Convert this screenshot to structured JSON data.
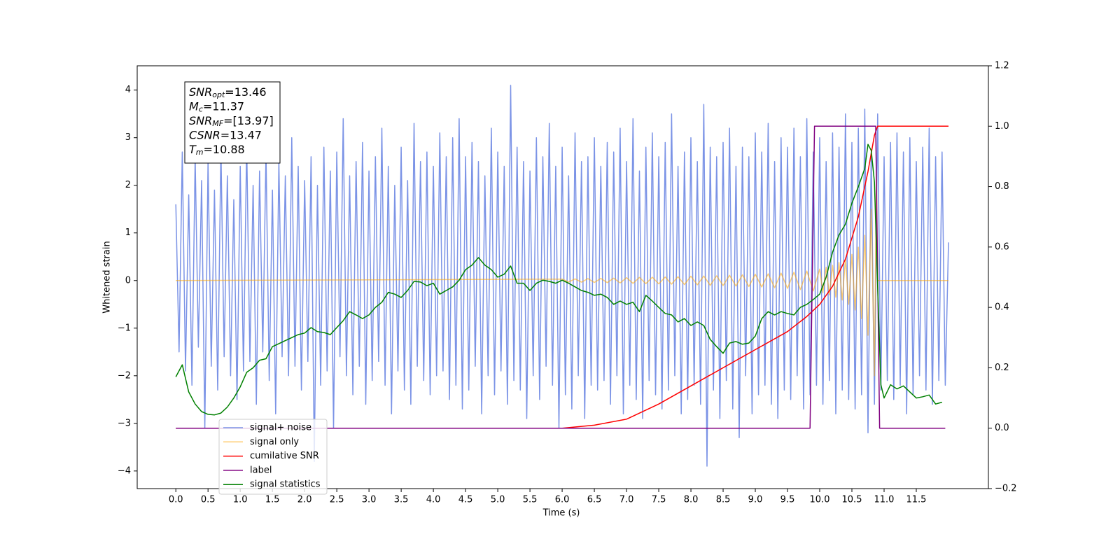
{
  "chart_data": {
    "type": "line",
    "xlabel": "Time (s)",
    "ylabel": "Whitened strain",
    "xlim": [
      -0.6,
      12.62
    ],
    "ylim": [
      -4.37,
      4.51
    ],
    "y2lim": [
      -0.2,
      1.2
    ],
    "xticks": [
      {
        "value": 0,
        "label": "0.0"
      },
      0.5,
      {
        "value": 1,
        "label": "1.0"
      },
      1.5,
      {
        "value": 2,
        "label": "2.0"
      },
      2.5,
      {
        "value": 3,
        "label": "3.0"
      },
      3.5,
      {
        "value": 4,
        "label": "4.0"
      },
      4.5,
      {
        "value": 5,
        "label": "5.0"
      },
      5.5,
      {
        "value": 6,
        "label": "6.0"
      },
      6.5,
      {
        "value": 7,
        "label": "7.0"
      },
      7.5,
      {
        "value": 8,
        "label": "8.0"
      },
      8.5,
      {
        "value": 9,
        "label": "9.0"
      },
      9.5,
      {
        "value": 10,
        "label": "10.0"
      },
      10.5,
      {
        "value": 11,
        "label": "11.0"
      },
      11.5
    ],
    "yticks": [
      {
        "value": -4,
        "label": "−4"
      },
      {
        "value": -3,
        "label": "−3"
      },
      {
        "value": -2,
        "label": "−2"
      },
      {
        "value": -1,
        "label": "−1"
      },
      0,
      1,
      2,
      3,
      4
    ],
    "y2ticks": [
      {
        "value": -0.2,
        "label": "−0.2"
      },
      {
        "value": 0,
        "label": "0.0"
      },
      0.2,
      0.4,
      0.6,
      0.8,
      {
        "value": 1,
        "label": "1.0"
      },
      1.2
    ],
    "legend": "lower left",
    "annotations": [
      {
        "symbol": "SNR",
        "subscript": "opt",
        "text": "=13.46"
      },
      {
        "symbol": "M",
        "subscript": "c",
        "text": "=11.37"
      },
      {
        "symbol": "SNR",
        "subscript": "MF",
        "text": "=[13.97]"
      },
      {
        "symbol": "CSNR",
        "subscript": "",
        "text": "=13.47"
      },
      {
        "symbol": "T",
        "subscript": "m",
        "text": "=10.88"
      }
    ],
    "series": [
      {
        "name": "signal+ noise",
        "color": "#7b93e6",
        "axis": "y",
        "x": [
          0,
          0.05,
          0.1,
          0.15,
          0.2,
          0.25,
          0.3,
          0.35,
          0.4,
          0.45,
          0.5,
          0.55,
          0.6,
          0.65,
          0.7,
          0.75,
          0.8,
          0.85,
          0.9,
          0.95,
          1,
          1.05,
          1.1,
          1.15,
          1.2,
          1.25,
          1.3,
          1.35,
          1.4,
          1.45,
          1.5,
          1.55,
          1.6,
          1.65,
          1.7,
          1.75,
          1.8,
          1.85,
          1.9,
          1.95,
          2,
          2.05,
          2.1,
          2.15,
          2.2,
          2.25,
          2.3,
          2.35,
          2.4,
          2.45,
          2.5,
          2.55,
          2.6,
          2.65,
          2.7,
          2.75,
          2.8,
          2.85,
          2.9,
          2.95,
          3,
          3.05,
          3.1,
          3.15,
          3.2,
          3.25,
          3.3,
          3.35,
          3.4,
          3.45,
          3.5,
          3.55,
          3.6,
          3.65,
          3.7,
          3.75,
          3.8,
          3.85,
          3.9,
          3.95,
          4,
          4.05,
          4.1,
          4.15,
          4.2,
          4.25,
          4.3,
          4.35,
          4.4,
          4.45,
          4.5,
          4.55,
          4.6,
          4.65,
          4.7,
          4.75,
          4.8,
          4.85,
          4.9,
          4.95,
          5,
          5.05,
          5.1,
          5.15,
          5.2,
          5.25,
          5.3,
          5.35,
          5.4,
          5.45,
          5.5,
          5.55,
          5.6,
          5.65,
          5.7,
          5.75,
          5.8,
          5.85,
          5.9,
          5.95,
          6,
          6.05,
          6.1,
          6.15,
          6.2,
          6.25,
          6.3,
          6.35,
          6.4,
          6.45,
          6.5,
          6.55,
          6.6,
          6.65,
          6.7,
          6.75,
          6.8,
          6.85,
          6.9,
          6.95,
          7,
          7.05,
          7.1,
          7.15,
          7.2,
          7.25,
          7.3,
          7.35,
          7.4,
          7.45,
          7.5,
          7.55,
          7.6,
          7.65,
          7.7,
          7.75,
          7.8,
          7.85,
          7.9,
          7.95,
          8,
          8.05,
          8.1,
          8.15,
          8.2,
          8.25,
          8.3,
          8.35,
          8.4,
          8.45,
          8.5,
          8.55,
          8.6,
          8.65,
          8.7,
          8.75,
          8.8,
          8.85,
          8.9,
          8.95,
          9,
          9.05,
          9.1,
          9.15,
          9.2,
          9.25,
          9.3,
          9.35,
          9.4,
          9.45,
          9.5,
          9.55,
          9.6,
          9.65,
          9.7,
          9.75,
          9.8,
          9.85,
          9.9,
          9.95,
          10,
          10.05,
          10.1,
          10.15,
          10.2,
          10.25,
          10.3,
          10.35,
          10.4,
          10.45,
          10.5,
          10.55,
          10.6,
          10.65,
          10.7,
          10.75,
          10.8,
          10.85,
          10.9,
          10.95,
          11,
          11.05,
          11.1,
          11.15,
          11.2,
          11.25,
          11.3,
          11.35,
          11.4,
          11.45,
          11.5,
          11.55,
          11.6,
          11.65,
          11.7,
          11.75,
          11.8,
          11.85,
          11.9,
          11.95,
          12
        ],
        "values": [
          1.6,
          -1.5,
          2.7,
          -1.9,
          1.8,
          -2.2,
          2.6,
          -1.4,
          2.1,
          -3.1,
          2.5,
          -1.8,
          1.9,
          -2.3,
          2.8,
          -1.6,
          2.2,
          -2.0,
          1.7,
          -2.5,
          2.4,
          -1.9,
          2.9,
          -1.7,
          2.0,
          -2.6,
          2.3,
          -1.5,
          2.7,
          -2.1,
          1.9,
          -2.8,
          2.5,
          -1.6,
          2.2,
          -2.0,
          3.0,
          -1.8,
          2.4,
          -2.3,
          2.1,
          -1.7,
          2.6,
          -3.8,
          2.0,
          -2.2,
          2.8,
          -1.9,
          2.3,
          -3.1,
          2.7,
          -1.6,
          3.4,
          -2.0,
          2.2,
          -2.4,
          2.5,
          -1.8,
          2.9,
          -2.6,
          2.3,
          -2.1,
          2.6,
          -1.7,
          3.2,
          -2.2,
          2.4,
          -2.8,
          2.0,
          -1.9,
          2.8,
          -2.3,
          2.1,
          -2.6,
          3.3,
          -1.8,
          2.5,
          -2.1,
          2.7,
          -2.4,
          2.4,
          -2.0,
          3.1,
          -1.9,
          2.6,
          -2.5,
          3.0,
          -2.2,
          3.4,
          -2.7,
          2.6,
          -2.3,
          2.9,
          -1.8,
          2.5,
          -2.8,
          2.2,
          -2.0,
          3.2,
          -2.4,
          2.7,
          -1.9,
          2.4,
          -2.6,
          4.1,
          -2.1,
          2.8,
          -2.3,
          2.5,
          -2.9,
          2.3,
          -2.0,
          3.0,
          -2.5,
          2.6,
          -1.8,
          3.3,
          -2.2,
          2.4,
          -3.1,
          2.8,
          -2.4,
          2.2,
          -2.7,
          3.1,
          -2.0,
          2.5,
          -2.9,
          2.6,
          -2.2,
          3.0,
          -2.3,
          2.4,
          -2.1,
          2.9,
          -2.6,
          2.7,
          -2.0,
          3.2,
          -2.8,
          2.5,
          -2.2,
          3.4,
          -2.5,
          2.3,
          -2.9,
          2.8,
          -2.1,
          3.1,
          -2.4,
          2.6,
          -2.7,
          2.9,
          -2.3,
          3.5,
          -2.0,
          2.4,
          -2.8,
          2.7,
          -2.5,
          3.0,
          -2.2,
          2.5,
          -2.6,
          3.7,
          -3.9,
          2.8,
          -2.3,
          2.6,
          -2.9,
          2.9,
          -2.1,
          3.2,
          -2.7,
          2.4,
          -3.3,
          2.8,
          -2.0,
          2.6,
          -2.8,
          3.1,
          -2.4,
          2.7,
          -2.2,
          3.3,
          -2.6,
          2.5,
          -2.9,
          3.0,
          -2.3,
          2.8,
          -2.5,
          3.2,
          -2.0,
          2.6,
          -2.7,
          3.4,
          -2.4,
          2.7,
          -2.2,
          3.0,
          -2.6,
          2.5,
          -2.1,
          3.1,
          -2.8,
          2.8,
          -2.3,
          3.5,
          -2.5,
          2.9,
          -2.7,
          3.2,
          -2.4,
          3.6,
          -3.2,
          2.7,
          -2.6,
          3.5,
          -2.3,
          2.6,
          -2.1,
          2.9,
          -2.5,
          3.1,
          -2.2,
          2.7,
          -2.8,
          3.0,
          -2.4,
          2.5,
          -2.0,
          2.8,
          -2.3,
          3.2,
          -2.6,
          2.6,
          -2.1,
          2.7,
          -2.2,
          0.8
        ]
      },
      {
        "name": "signal only",
        "color": "#ffa500",
        "axis": "y",
        "x": [
          0,
          6.0,
          6.1,
          6.2,
          6.3,
          6.4,
          6.5,
          6.6,
          6.7,
          6.8,
          6.9,
          7.0,
          7.1,
          7.2,
          7.3,
          7.4,
          7.5,
          7.6,
          7.7,
          7.8,
          7.9,
          8.0,
          8.1,
          8.2,
          8.3,
          8.4,
          8.5,
          8.6,
          8.7,
          8.8,
          8.9,
          9.0,
          9.1,
          9.2,
          9.3,
          9.4,
          9.5,
          9.6,
          9.7,
          9.8,
          9.9,
          10.0,
          10.05,
          10.1,
          10.15,
          10.2,
          10.25,
          10.3,
          10.35,
          10.4,
          10.45,
          10.5,
          10.55,
          10.6,
          10.65,
          10.7,
          10.75,
          10.8,
          10.85,
          10.88,
          10.9,
          12.0
        ],
        "values": [
          0,
          0.03,
          -0.03,
          0.035,
          -0.035,
          0.04,
          -0.04,
          0.045,
          -0.045,
          0.05,
          -0.05,
          0.06,
          -0.06,
          0.065,
          -0.065,
          0.07,
          -0.07,
          0.075,
          -0.075,
          0.08,
          -0.085,
          0.09,
          -0.09,
          0.095,
          -0.1,
          0.1,
          -0.105,
          0.11,
          -0.115,
          0.12,
          -0.125,
          0.13,
          -0.135,
          0.14,
          -0.15,
          0.155,
          -0.165,
          0.175,
          -0.19,
          0.2,
          -0.22,
          0.24,
          -0.26,
          0.28,
          -0.3,
          0.32,
          -0.35,
          0.38,
          -0.41,
          0.45,
          -0.5,
          0.55,
          -0.62,
          0.7,
          -0.8,
          0.95,
          -1.15,
          1.5,
          -2.0,
          2.3,
          0,
          0
        ]
      },
      {
        "name": "cumilative SNR",
        "color": "#ff0000",
        "axis": "y2",
        "x": [
          0,
          6.0,
          6.5,
          7.0,
          7.5,
          8.0,
          8.5,
          9.0,
          9.5,
          9.8,
          10.0,
          10.2,
          10.4,
          10.6,
          10.75,
          10.85,
          10.9,
          12.0
        ],
        "values": [
          0,
          0,
          0.01,
          0.03,
          0.08,
          0.14,
          0.2,
          0.26,
          0.32,
          0.37,
          0.41,
          0.47,
          0.56,
          0.7,
          0.85,
          0.97,
          1.0,
          1.0
        ]
      },
      {
        "name": "label",
        "color": "#800080",
        "axis": "y2",
        "x": [
          0,
          9.85,
          9.92,
          10.87,
          10.93,
          11.95
        ],
        "values": [
          0,
          0,
          1,
          1,
          0,
          0
        ]
      },
      {
        "name": "signal statistics",
        "color": "#008000",
        "axis": "y2",
        "x": [
          0,
          0.1,
          0.2,
          0.3,
          0.4,
          0.5,
          0.6,
          0.7,
          0.8,
          0.9,
          1.0,
          1.1,
          1.2,
          1.3,
          1.4,
          1.5,
          1.6,
          1.7,
          1.8,
          1.9,
          2.0,
          2.1,
          2.2,
          2.3,
          2.4,
          2.5,
          2.6,
          2.7,
          2.8,
          2.9,
          3.0,
          3.1,
          3.2,
          3.3,
          3.4,
          3.5,
          3.6,
          3.7,
          3.8,
          3.9,
          4.0,
          4.1,
          4.2,
          4.3,
          4.4,
          4.5,
          4.6,
          4.7,
          4.8,
          4.9,
          5.0,
          5.1,
          5.2,
          5.3,
          5.4,
          5.5,
          5.6,
          5.7,
          5.8,
          5.9,
          6.0,
          6.1,
          6.2,
          6.3,
          6.4,
          6.5,
          6.6,
          6.7,
          6.8,
          6.9,
          7.0,
          7.1,
          7.2,
          7.3,
          7.4,
          7.5,
          7.6,
          7.7,
          7.8,
          7.9,
          8.0,
          8.1,
          8.2,
          8.3,
          8.4,
          8.5,
          8.6,
          8.7,
          8.8,
          8.9,
          9.0,
          9.1,
          9.2,
          9.3,
          9.4,
          9.5,
          9.6,
          9.7,
          9.8,
          9.9,
          10.0,
          10.1,
          10.2,
          10.3,
          10.4,
          10.5,
          10.6,
          10.7,
          10.75,
          10.8,
          10.85,
          10.9,
          10.95,
          11.0,
          11.1,
          11.2,
          11.3,
          11.4,
          11.5,
          11.6,
          11.7,
          11.8,
          11.9
        ],
        "values": [
          0.17,
          0.21,
          0.12,
          0.08,
          0.055,
          0.046,
          0.044,
          0.05,
          0.07,
          0.1,
          0.137,
          0.185,
          0.2,
          0.225,
          0.23,
          0.27,
          0.28,
          0.29,
          0.3,
          0.31,
          0.315,
          0.333,
          0.32,
          0.317,
          0.31,
          0.333,
          0.356,
          0.386,
          0.375,
          0.363,
          0.375,
          0.4,
          0.417,
          0.45,
          0.444,
          0.433,
          0.456,
          0.486,
          0.484,
          0.472,
          0.48,
          0.444,
          0.456,
          0.468,
          0.49,
          0.525,
          0.54,
          0.565,
          0.54,
          0.525,
          0.5,
          0.51,
          0.537,
          0.48,
          0.48,
          0.456,
          0.48,
          0.49,
          0.486,
          0.48,
          0.49,
          0.48,
          0.468,
          0.456,
          0.45,
          0.44,
          0.444,
          0.433,
          0.41,
          0.421,
          0.41,
          0.417,
          0.386,
          0.44,
          0.421,
          0.4,
          0.38,
          0.375,
          0.352,
          0.363,
          0.34,
          0.352,
          0.34,
          0.294,
          0.27,
          0.248,
          0.282,
          0.287,
          0.278,
          0.282,
          0.305,
          0.363,
          0.386,
          0.375,
          0.386,
          0.38,
          0.375,
          0.4,
          0.41,
          0.426,
          0.444,
          0.5,
          0.583,
          0.64,
          0.676,
          0.745,
          0.8,
          0.86,
          0.94,
          0.92,
          0.815,
          0.468,
          0.144,
          0.1,
          0.144,
          0.13,
          0.14,
          0.12,
          0.1,
          0.104,
          0.11,
          0.08,
          0.086
        ]
      }
    ]
  }
}
